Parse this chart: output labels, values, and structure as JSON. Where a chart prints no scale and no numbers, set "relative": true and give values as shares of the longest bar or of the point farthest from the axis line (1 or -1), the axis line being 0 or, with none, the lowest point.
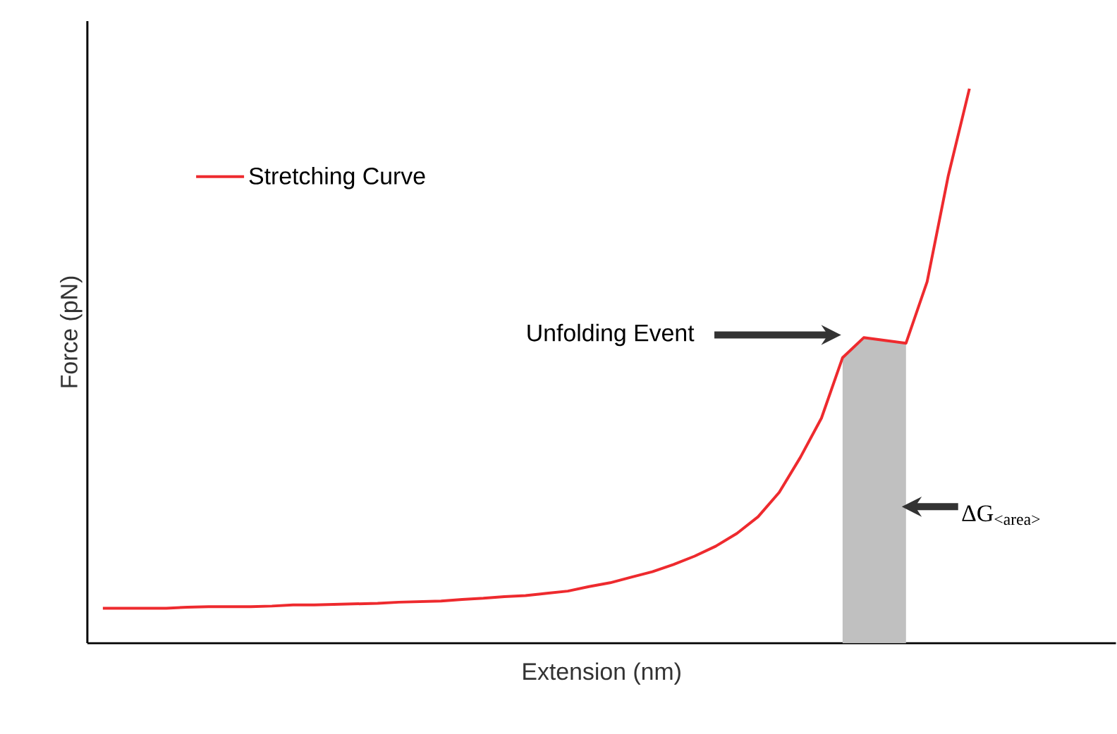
{
  "chart_data": {
    "type": "line",
    "relative": true,
    "xlabel": "Extension (nm)",
    "ylabel": "Force (pN)",
    "legend": "top left",
    "categories": [
      null,
      null,
      null,
      null,
      null,
      null,
      null,
      null,
      null,
      null,
      null,
      null,
      null,
      null,
      null,
      null,
      null,
      null,
      null,
      null,
      null,
      null,
      null,
      null,
      null,
      null,
      null,
      null,
      null,
      null,
      null,
      null,
      null,
      null,
      null,
      null,
      null,
      null,
      null,
      null,
      null,
      null
    ],
    "series": [
      {
        "type": "area",
        "color": "#c0c0c0",
        "values": [
          null,
          null,
          null,
          null,
          null,
          null,
          null,
          null,
          null,
          null,
          null,
          null,
          null,
          null,
          null,
          null,
          null,
          null,
          null,
          null,
          null,
          null,
          null,
          null,
          null,
          null,
          null,
          null,
          null,
          null,
          null,
          null,
          null,
          null,
          null,
          0.515,
          0.551,
          0.546,
          0.541,
          null,
          null,
          null
        ]
      },
      {
        "name": "Stretching Curve",
        "color": "#ee2a2e",
        "values": [
          0.063,
          0.063,
          0.063,
          0.063,
          0.065,
          0.066,
          0.066,
          0.066,
          0.067,
          0.069,
          0.069,
          0.07,
          0.071,
          0.072,
          0.074,
          0.075,
          0.076,
          0.079,
          0.081,
          0.084,
          0.086,
          0.09,
          0.094,
          0.102,
          0.109,
          0.119,
          0.129,
          0.142,
          0.157,
          0.175,
          0.198,
          0.228,
          0.272,
          0.335,
          0.406,
          0.515,
          0.551,
          0.546,
          0.541,
          0.652,
          0.843,
          1.0
        ]
      }
    ],
    "annotations": [
      "Unfolding Event",
      "ΔG$_{<area>}$"
    ]
  }
}
